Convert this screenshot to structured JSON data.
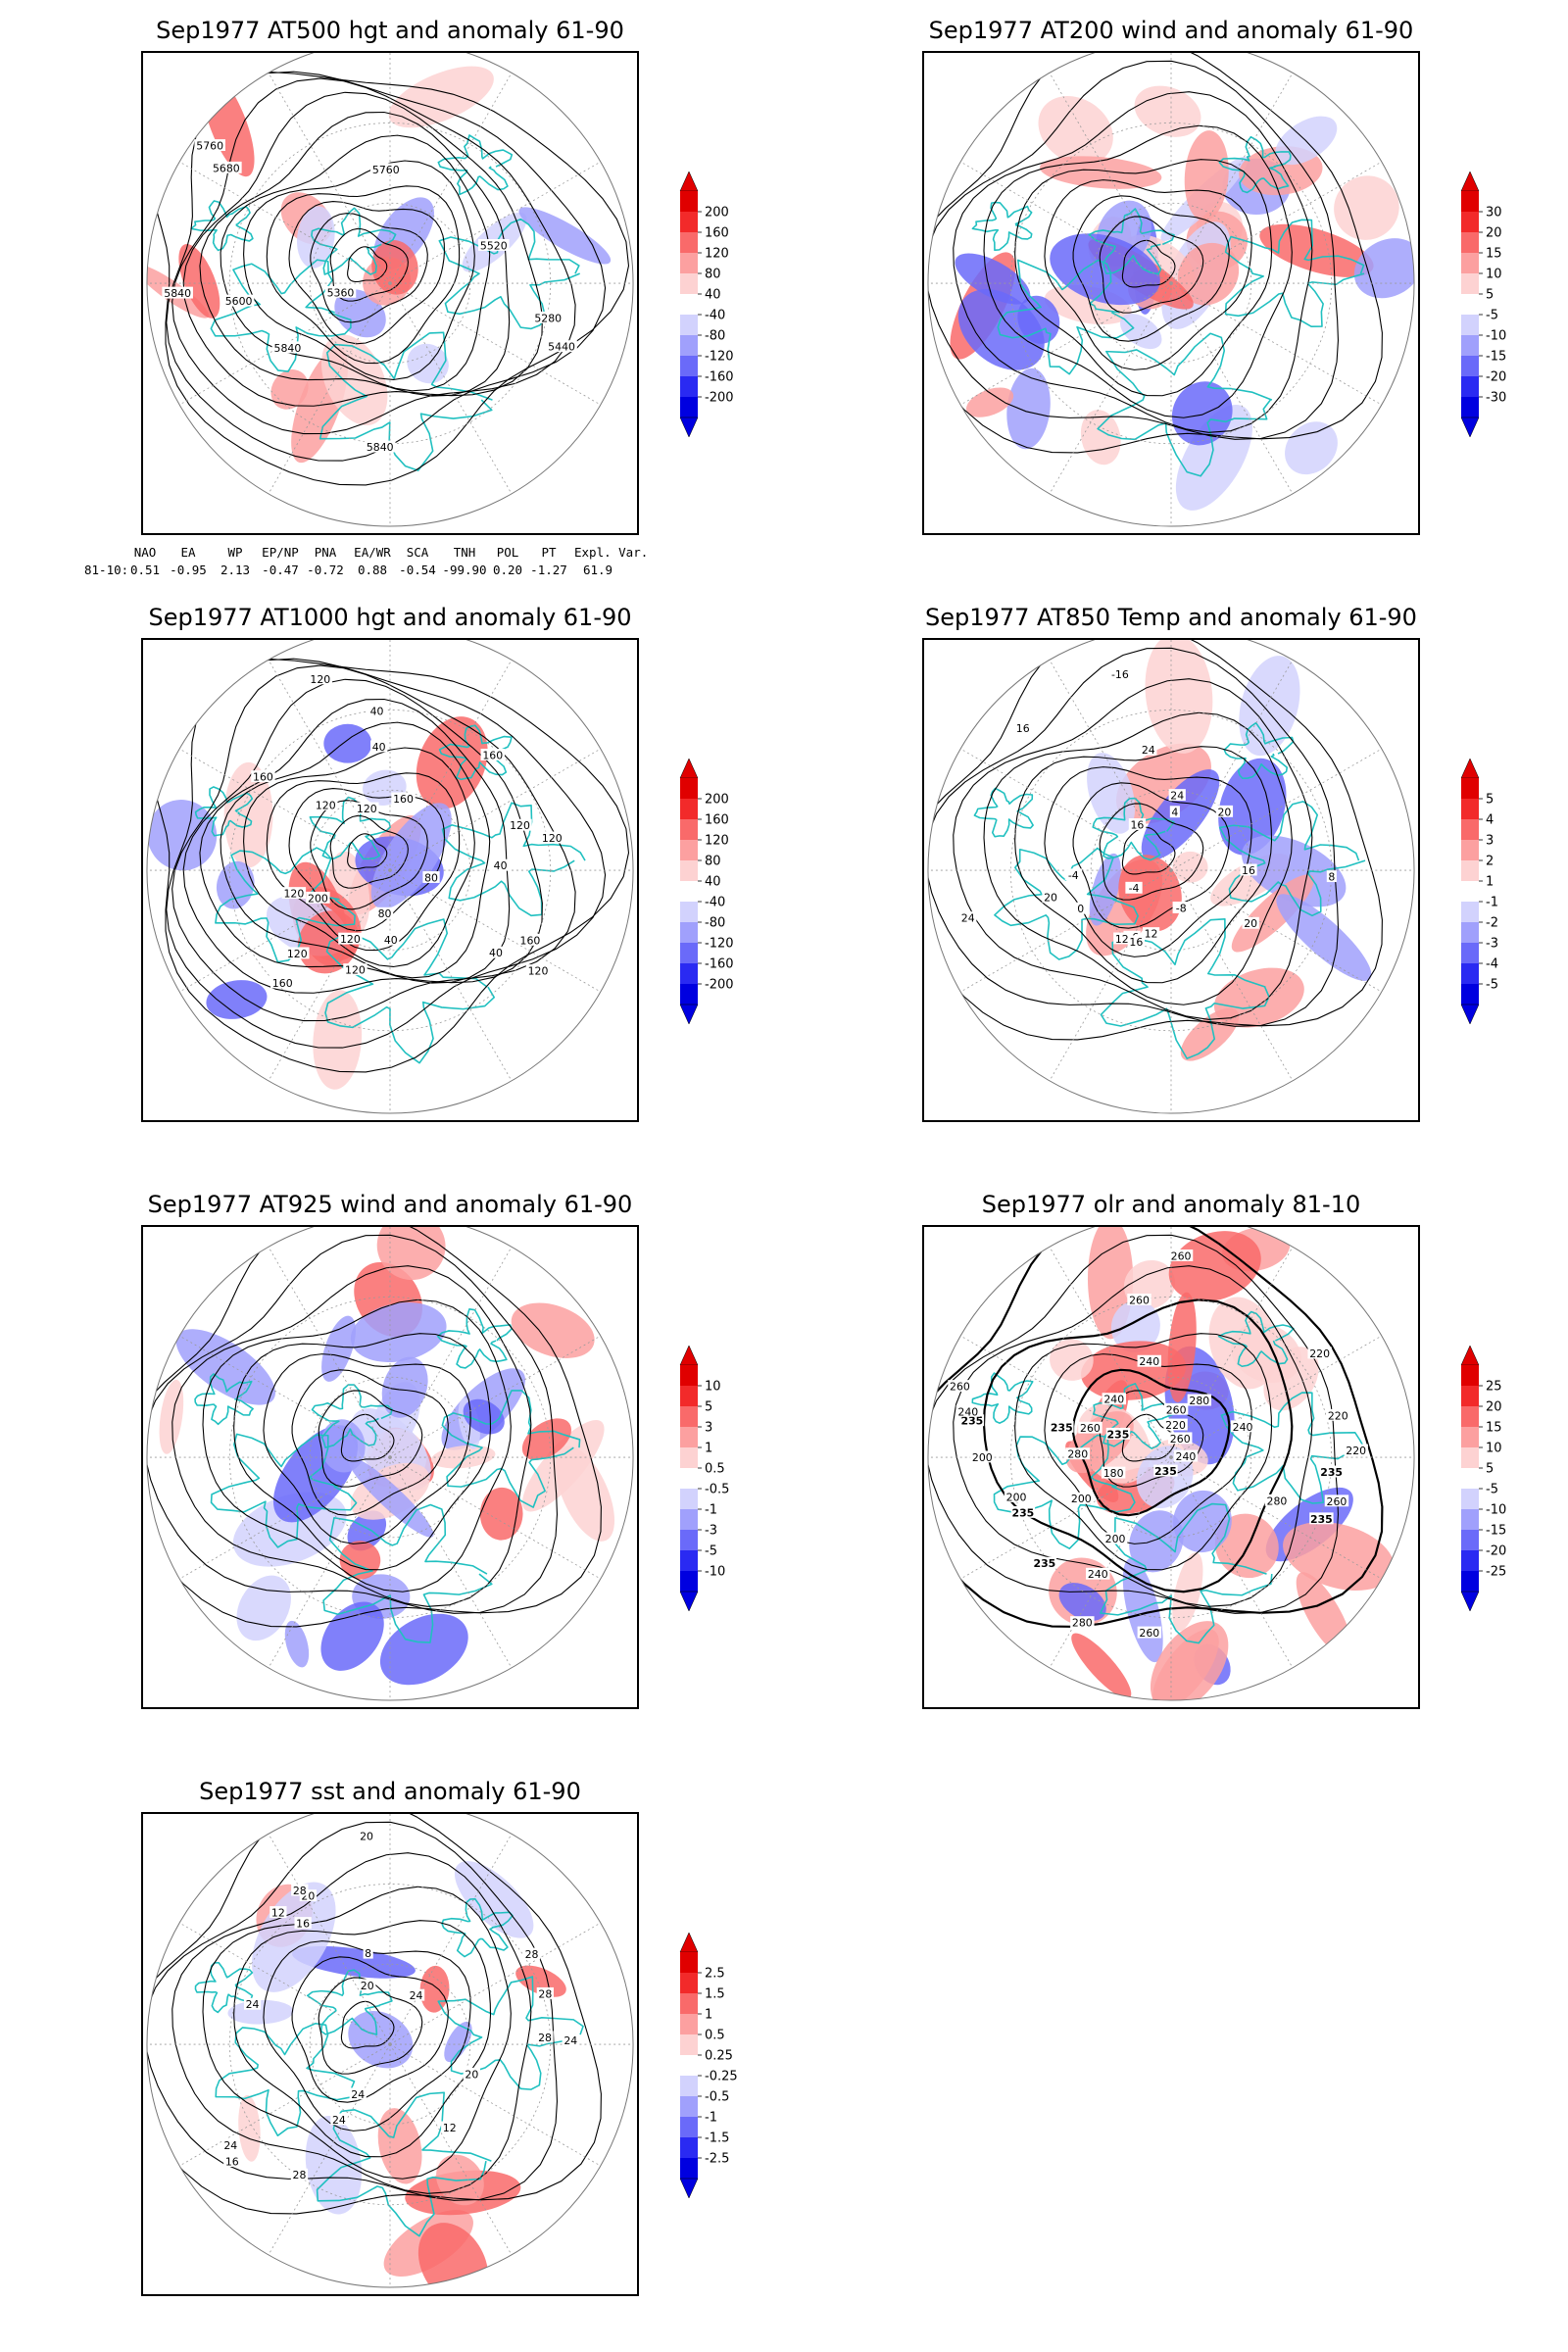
{
  "colors": {
    "land": "#20c0c0",
    "contour": "#000000",
    "grid": "#9a9a9a",
    "frame": "#000000"
  },
  "panels": [
    {
      "id": "at500",
      "title": "Sep1977 AT500 hgt and anomaly 61-90",
      "variable": "hgt",
      "contour_labels": [
        "5840",
        "5760",
        "5280",
        "5360",
        "5440",
        "5520",
        "5600",
        "5680",
        "5760",
        "5840",
        "5840"
      ],
      "colorbar": [
        "200",
        "160",
        "120",
        "80",
        "40",
        "-40",
        "-80",
        "-120",
        "-160",
        "-200"
      ]
    },
    {
      "id": "at200",
      "title": "Sep1977 AT200 wind and anomaly 61-90",
      "variable": "wind",
      "contour_labels": [],
      "colorbar": [
        "30",
        "20",
        "15",
        "10",
        "5",
        "-5",
        "-10",
        "-15",
        "-20",
        "-30"
      ]
    },
    {
      "id": "at1000",
      "title": "Sep1977 AT1000 hgt and anomaly 61-90",
      "variable": "hgt",
      "contour_labels": [
        "120",
        "80",
        "200",
        "160",
        "160",
        "120",
        "40",
        "40",
        "120",
        "120",
        "40",
        "120",
        "40",
        "120",
        "160",
        "160",
        "160",
        "120",
        "120",
        "120",
        "40",
        "80",
        "120"
      ],
      "colorbar": [
        "200",
        "160",
        "120",
        "80",
        "40",
        "-40",
        "-80",
        "-120",
        "-160",
        "-200"
      ]
    },
    {
      "id": "at850",
      "title": "Sep1977 AT850 Temp and anomaly 61-90",
      "variable": "temp",
      "contour_labels": [
        "16",
        "12",
        "16",
        "-4",
        "0",
        "-8",
        "-4",
        "4",
        "8",
        "12",
        "16",
        "20",
        "24",
        "20",
        "24",
        "20",
        "16",
        "-16",
        "16",
        "24"
      ],
      "colorbar": [
        "5",
        "4",
        "3",
        "2",
        "1",
        "-1",
        "-2",
        "-3",
        "-4",
        "-5"
      ]
    },
    {
      "id": "at925",
      "title": "Sep1977 AT925 wind and anomaly 61-90",
      "variable": "wind",
      "contour_labels": [],
      "colorbar": [
        "10",
        "5",
        "3",
        "1",
        "0.5",
        "-0.5",
        "-1",
        "-3",
        "-5",
        "-10"
      ]
    },
    {
      "id": "olr",
      "title": "Sep1977 olr and anomaly 81-10",
      "variable": "olr",
      "contour_labels": [
        "280",
        "260",
        "235",
        "235",
        "220",
        "240",
        "260",
        "260",
        "235",
        "240",
        "200",
        "220",
        "235",
        "235",
        "240",
        "260",
        "200",
        "180",
        "200",
        "235",
        "280",
        "260",
        "220",
        "235",
        "260",
        "200",
        "240",
        "280",
        "260",
        "235",
        "240",
        "280",
        "260",
        "220",
        "240"
      ],
      "colorbar": [
        "25",
        "20",
        "15",
        "10",
        "5",
        "-5",
        "-10",
        "-15",
        "-20",
        "-25"
      ]
    },
    {
      "id": "sst",
      "title": "Sep1977 sst and anomaly 61-90",
      "variable": "sst",
      "contour_labels": [
        "28",
        "28",
        "24",
        "24",
        "20",
        "16",
        "12",
        "20",
        "24",
        "28",
        "24",
        "20",
        "16",
        "12",
        "8",
        "20",
        "24",
        "28",
        "28",
        "24"
      ],
      "colorbar": [
        "2.5",
        "1.5",
        "1",
        "0.5",
        "0.25",
        "-0.25",
        "-0.5",
        "-1",
        "-1.5",
        "-2.5"
      ]
    }
  ],
  "indices": {
    "names": [
      "NAO",
      "EA",
      "WP",
      "EP/NP",
      "PNA",
      "EA/WR",
      "SCA",
      "TNH",
      "POL",
      "PT",
      "Expl. Var."
    ],
    "row_label": "81-10:",
    "values": [
      "0.51",
      "-0.95",
      "2.13",
      "-0.47",
      "-0.72",
      "0.88",
      "-0.54",
      "-99.90",
      "0.20",
      "-1.27",
      "61.9"
    ]
  }
}
